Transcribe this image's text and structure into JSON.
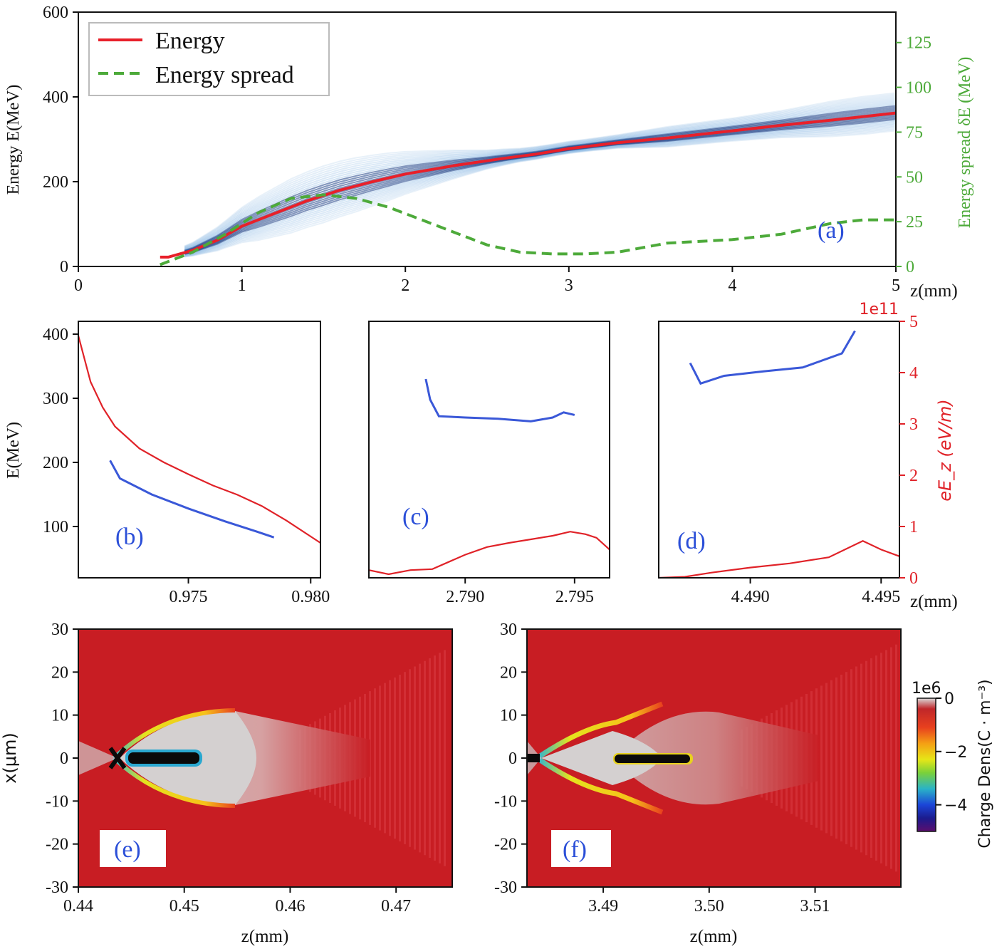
{
  "chart_data": [
    {
      "id": "a",
      "type": "line",
      "panel_label": "(a)",
      "xlabel": "z(mm)",
      "ylabel": "Energy E(MeV)",
      "ylabel_right": "Energy spread δE (MeV)",
      "xlim": [
        0,
        5
      ],
      "ylim": [
        0,
        600
      ],
      "ylim_right": [
        0,
        142
      ],
      "xticks": [
        0,
        1,
        2,
        3,
        4,
        5
      ],
      "yticks": [
        0,
        200,
        400,
        600
      ],
      "yticks_right": [
        0,
        25,
        50,
        75,
        100,
        125
      ],
      "legend": {
        "position": "top-left",
        "entries": [
          "Energy",
          "Energy spread"
        ]
      },
      "colors": {
        "energy": "#e8202a",
        "spread": "#4daa3a",
        "band": "#1f5fa8"
      },
      "series": [
        {
          "name": "Energy",
          "axis": "left",
          "x": [
            0.5,
            0.55,
            0.7,
            0.85,
            1.0,
            1.2,
            1.4,
            1.6,
            1.8,
            2.0,
            2.3,
            2.6,
            2.8,
            3.0,
            3.3,
            3.6,
            4.0,
            4.3,
            4.6,
            5.0
          ],
          "values": [
            22,
            22,
            38,
            62,
            95,
            125,
            155,
            180,
            200,
            218,
            238,
            255,
            265,
            278,
            292,
            303,
            320,
            333,
            345,
            362
          ]
        },
        {
          "name": "Energy spread",
          "axis": "right",
          "x": [
            0.5,
            0.7,
            0.9,
            1.1,
            1.3,
            1.5,
            1.7,
            1.9,
            2.1,
            2.3,
            2.5,
            2.7,
            2.9,
            3.1,
            3.3,
            3.6,
            4.0,
            4.3,
            4.6,
            4.8,
            5.0
          ],
          "values": [
            1,
            8,
            18,
            30,
            38,
            40,
            38,
            33,
            26,
            19,
            12,
            8,
            7,
            7,
            8,
            13,
            15,
            18,
            24,
            26,
            26
          ]
        }
      ]
    },
    {
      "id": "b",
      "type": "line",
      "panel_label": "(b)",
      "ylabel": "E(MeV)",
      "xlim": [
        0.9705,
        0.9804
      ],
      "ylim": [
        20,
        420
      ],
      "xticks": [
        0.975,
        0.98
      ],
      "xtick_labels": [
        "0.975",
        "0.980"
      ],
      "yticks": [
        100,
        200,
        300,
        400
      ],
      "series": [
        {
          "role": "energy-trace",
          "x": [
            0.9718,
            0.9722,
            0.9735,
            0.975,
            0.9765,
            0.9778,
            0.9785
          ],
          "values": [
            203,
            175,
            150,
            128,
            108,
            92,
            83
          ]
        },
        {
          "role": "field",
          "x": [
            0.9705,
            0.971,
            0.9715,
            0.972,
            0.973,
            0.974,
            0.975,
            0.976,
            0.977,
            0.978,
            0.979,
            0.9804
          ],
          "values": [
            4.72,
            3.82,
            3.32,
            2.95,
            2.52,
            2.25,
            2.02,
            1.8,
            1.62,
            1.4,
            1.12,
            0.68
          ]
        }
      ]
    },
    {
      "id": "c",
      "type": "line",
      "panel_label": "(c)",
      "xlim": [
        2.7856,
        2.7966
      ],
      "xticks": [
        2.79,
        2.795
      ],
      "xtick_labels": [
        "2.790",
        "2.795"
      ],
      "ylim": [
        20,
        420
      ],
      "series": [
        {
          "role": "energy-trace",
          "x": [
            2.7882,
            2.7884,
            2.7888,
            2.79,
            2.7915,
            2.793,
            2.794,
            2.7945,
            2.795
          ],
          "values": [
            330,
            298,
            272,
            270,
            268,
            264,
            270,
            278,
            274
          ]
        },
        {
          "role": "field",
          "x": [
            2.7856,
            2.7865,
            2.7875,
            2.7885,
            2.79,
            2.791,
            2.792,
            2.793,
            2.794,
            2.7948,
            2.7955,
            2.796,
            2.7966
          ],
          "values": [
            0.15,
            0.07,
            0.15,
            0.17,
            0.45,
            0.6,
            0.68,
            0.75,
            0.82,
            0.9,
            0.85,
            0.78,
            0.55
          ]
        }
      ]
    },
    {
      "id": "d",
      "type": "line",
      "panel_label": "(d)",
      "xlabel": "z(mm)",
      "ylabel_right": "eE_z (eV/m)",
      "xlim": [
        4.4865,
        4.4957
      ],
      "xticks": [
        4.49,
        4.495
      ],
      "xtick_labels": [
        "4.490",
        "4.495"
      ],
      "ylim": [
        20,
        420
      ],
      "ylim_right": [
        0,
        5
      ],
      "yticks_right": [
        0,
        1,
        2,
        3,
        4,
        5
      ],
      "yscale_right": "1e11",
      "series": [
        {
          "role": "energy-trace",
          "x": [
            4.4877,
            4.4881,
            4.489,
            4.4905,
            4.492,
            4.4935,
            4.494
          ],
          "values": [
            355,
            323,
            335,
            342,
            348,
            370,
            405
          ]
        },
        {
          "role": "field",
          "x": [
            4.4865,
            4.4875,
            4.4885,
            4.49,
            4.4915,
            4.493,
            4.4943,
            4.495,
            4.4957
          ],
          "values": [
            0.0,
            0.02,
            0.1,
            0.2,
            0.28,
            0.4,
            0.72,
            0.55,
            0.42
          ]
        }
      ]
    },
    {
      "id": "e",
      "type": "heatmap",
      "panel_label": "(e)",
      "xlabel": "z(mm)",
      "ylabel": "x(μm)",
      "xlim": [
        0.44,
        0.4753
      ],
      "ylim": [
        -30,
        30
      ],
      "xticks": [
        0.44,
        0.45,
        0.46,
        0.47
      ],
      "yticks": [
        -30,
        -20,
        -10,
        0,
        10,
        20,
        30
      ]
    },
    {
      "id": "f",
      "type": "heatmap",
      "panel_label": "(f)",
      "xlabel": "z(mm)",
      "xlim": [
        3.4828,
        3.5181
      ],
      "ylim": [
        -30,
        30
      ],
      "xticks": [
        3.49,
        3.5,
        3.51
      ],
      "xtick_labels": [
        "3.49",
        "3.50",
        "3.51"
      ],
      "yticks": [
        -30,
        -20,
        -10,
        0,
        10,
        20,
        30
      ],
      "colorbar": {
        "label": "Charge Dens(C · m⁻³)",
        "scale": "1e6",
        "range": [
          -5,
          0
        ],
        "ticks": [
          0,
          -2,
          -4
        ]
      }
    }
  ]
}
